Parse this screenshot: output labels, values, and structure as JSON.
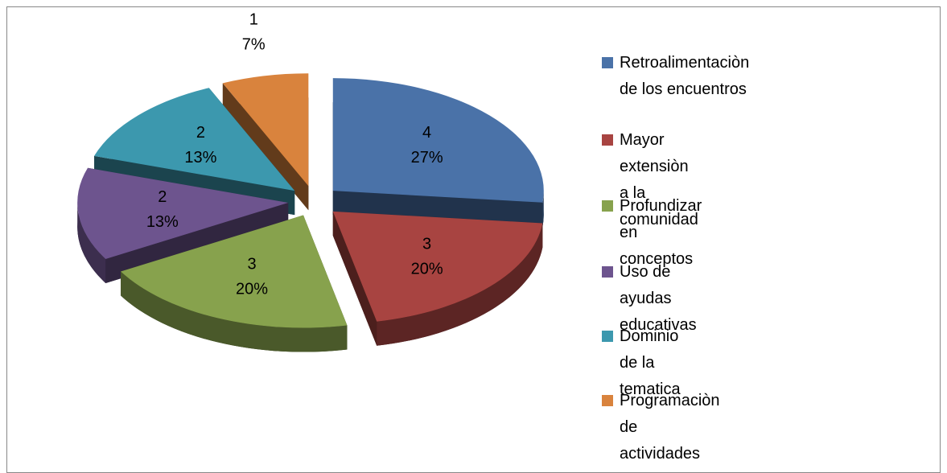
{
  "chart_data": {
    "type": "pie",
    "categories": [
      "Retroalimentaciòn de los encuentros",
      "Mayor extensiòn a la comunidad",
      "Profundizar en conceptos",
      "Uso de ayudas educativas",
      "Dominio de la tematica",
      "Programaciòn de actividades"
    ],
    "values": [
      4,
      3,
      3,
      2,
      2,
      1
    ],
    "percent_labels": [
      "27%",
      "20%",
      "20%",
      "13%",
      "13%",
      "7%"
    ],
    "colors": [
      "#4a72a8",
      "#a84441",
      "#87a24d",
      "#6d548e",
      "#3c98ae",
      "#d9833d"
    ],
    "legend": "right",
    "exploded": true,
    "three_d": true
  }
}
